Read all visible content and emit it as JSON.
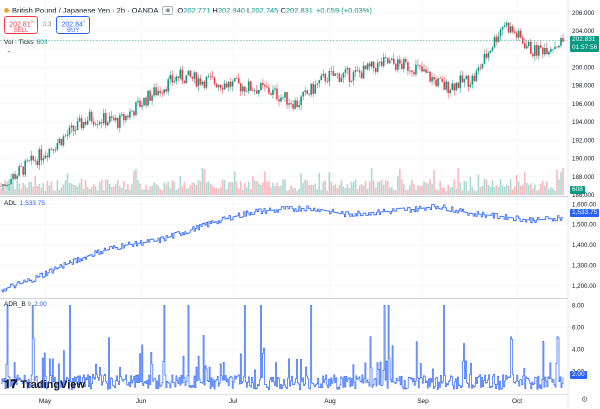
{
  "header": {
    "symbol_title": "British Pound / Japanese Yen · 2h · OANDA",
    "open_label": "O",
    "open": "202.771",
    "high_label": "H",
    "high": "202.840",
    "low_label": "L",
    "low": "202.745",
    "close_label": "C",
    "close": "202.831",
    "change": "+0.059 (+0.03%)",
    "sell_price": "202.81",
    "sell_sup": "0",
    "sell_label": "SELL",
    "buy_price": "202.84",
    "buy_sup": "7",
    "buy_label": "BUY",
    "spread": "3.3"
  },
  "volume": {
    "label": "Vol · Ticks",
    "value": "608"
  },
  "adl": {
    "label": "ADL",
    "value": "1,533.75"
  },
  "adr": {
    "label": "ADR_B",
    "param": "9",
    "value": "2.00"
  },
  "price_scale": [
    "206.000",
    "204.000",
    "202.000",
    "200.000",
    "198.000",
    "196.000",
    "194.000",
    "192.000",
    "190.000",
    "188.000",
    "186.000"
  ],
  "adl_scale": [
    "1,600.00",
    "1,500.00",
    "1,400.00",
    "1,300.00",
    "1,200.00"
  ],
  "adr_scale": [
    "8.00",
    "6.00",
    "4.00",
    "2.00"
  ],
  "badges": {
    "price": "202.831",
    "countdown": "01:57:56",
    "volume": "608",
    "adl_vol": "1,600",
    "adl": "1,533.75",
    "adr": "2.00"
  },
  "x_axis": [
    "May",
    "Jun",
    "Jul",
    "Aug",
    "Sep",
    "Oct"
  ],
  "logo": "TradingView",
  "colors": {
    "up": "#089981",
    "down": "#f23645",
    "line": "#2962ff",
    "grid": "#f0f3fa"
  },
  "chart_data": [
    {
      "type": "candlestick",
      "title": "British Pound / Japanese Yen · 2h · OANDA",
      "x_ticks": [
        "May",
        "Jun",
        "Jul",
        "Aug",
        "Sep",
        "Oct"
      ],
      "anchors_x": [
        "Apr 25",
        "May 1",
        "May 10",
        "May 20",
        "Jun 1",
        "Jun 12",
        "Jun 25",
        "Jul 10",
        "Jul 20",
        "Jul 31",
        "Aug 8",
        "Aug 20",
        "Sep 1",
        "Sep 15",
        "Sep 27",
        "Oct 2",
        "Oct 5",
        "Oct 8",
        "Oct 10",
        "Oct 13"
      ],
      "anchors_y": [
        187.0,
        189.5,
        192.0,
        194.5,
        194.0,
        196.8,
        199.0,
        198.5,
        198.0,
        197.5,
        196.0,
        199.0,
        199.2,
        200.5,
        200.0,
        197.8,
        198.8,
        204.9,
        201.7,
        202.8
      ],
      "ylim": [
        186.0,
        206.5
      ],
      "last": 202.831
    },
    {
      "type": "bar",
      "title": "Vol · Ticks",
      "last": 608
    },
    {
      "type": "line",
      "title": "ADL",
      "anchors_y": [
        1180,
        1230,
        1300,
        1360,
        1400,
        1420,
        1470,
        1520,
        1560,
        1575,
        1580,
        1550,
        1560,
        1570,
        1590,
        1555,
        1540,
        1520,
        1534
      ],
      "ylim": [
        1150,
        1620
      ],
      "last": 1533.75
    },
    {
      "type": "line",
      "title": "ADR_B 9",
      "ylim": [
        0,
        8.5
      ],
      "last": 2.0
    }
  ]
}
